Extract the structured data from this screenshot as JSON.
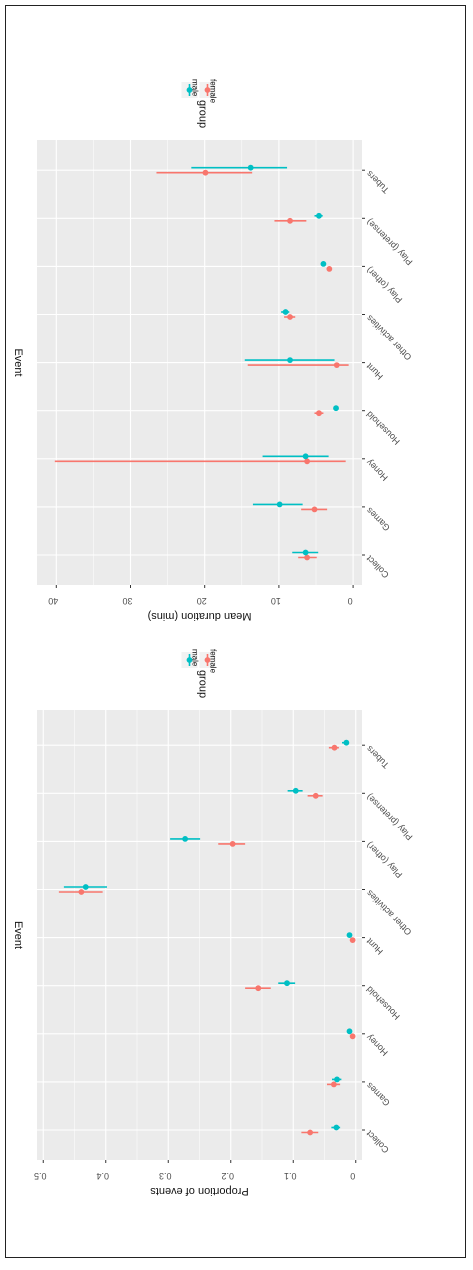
{
  "chart_data": [
    {
      "type": "scatter",
      "xlabel": "Event",
      "ylabel": "Mean duration (mins)",
      "categories": [
        "Collect",
        "Games",
        "Honey",
        "Household",
        "Hunt",
        "Other activities",
        "Play (other)",
        "Play (pretense)",
        "Tubers"
      ],
      "yticks": [
        0,
        10,
        20,
        30,
        40
      ],
      "ylim": [
        -1.2,
        42.6
      ],
      "grid": true,
      "legend": {
        "title": "group",
        "placement": "right",
        "entries": [
          "female",
          "male"
        ]
      },
      "series": [
        {
          "name": "female",
          "color": "#F8766D",
          "values": [
            6.2,
            5.2,
            6.2,
            4.6,
            2.2,
            8.5,
            3.2,
            8.5,
            19.9
          ],
          "lower": [
            4.9,
            3.5,
            1.0,
            4.0,
            0.6,
            7.8,
            3.0,
            6.3,
            13.6
          ],
          "upper": [
            7.4,
            7.0,
            40.2,
            5.2,
            14.2,
            9.3,
            3.5,
            10.6,
            26.5
          ]
        },
        {
          "name": "male",
          "color": "#00BFC4",
          "values": [
            6.4,
            9.9,
            6.4,
            2.3,
            8.5,
            9.1,
            4.0,
            4.6,
            13.8
          ],
          "lower": [
            4.7,
            6.8,
            3.3,
            2.1,
            2.5,
            8.6,
            3.8,
            4.1,
            8.9
          ],
          "upper": [
            8.2,
            13.5,
            12.2,
            2.5,
            14.6,
            9.7,
            4.3,
            5.2,
            21.8
          ]
        }
      ]
    },
    {
      "type": "scatter",
      "xlabel": "Event",
      "ylabel": "Proportion of events",
      "categories": [
        "Collect",
        "Games",
        "Honey",
        "Household",
        "Hunt",
        "Other activities",
        "Play (other)",
        "Play (pretense)",
        "Tubers"
      ],
      "yticks": [
        0.0,
        0.1,
        0.2,
        0.3,
        0.4,
        0.5
      ],
      "ylim": [
        -0.01,
        0.51
      ],
      "grid": true,
      "legend": {
        "title": "group",
        "placement": "right",
        "entries": [
          "female",
          "male"
        ]
      },
      "series": [
        {
          "name": "female",
          "color": "#F8766D",
          "values": [
            0.073,
            0.035,
            0.005,
            0.156,
            0.005,
            0.439,
            0.197,
            0.064,
            0.034
          ],
          "lower": [
            0.06,
            0.025,
            0.002,
            0.136,
            0.002,
            0.405,
            0.177,
            0.053,
            0.027
          ],
          "upper": [
            0.087,
            0.046,
            0.009,
            0.177,
            0.009,
            0.475,
            0.22,
            0.077,
            0.043
          ]
        },
        {
          "name": "male",
          "color": "#00BFC4",
          "values": [
            0.031,
            0.03,
            0.01,
            0.11,
            0.01,
            0.432,
            0.273,
            0.096,
            0.015
          ],
          "lower": [
            0.025,
            0.023,
            0.006,
            0.097,
            0.006,
            0.398,
            0.249,
            0.085,
            0.011
          ],
          "upper": [
            0.039,
            0.038,
            0.014,
            0.124,
            0.014,
            0.467,
            0.297,
            0.109,
            0.022
          ]
        }
      ]
    }
  ]
}
